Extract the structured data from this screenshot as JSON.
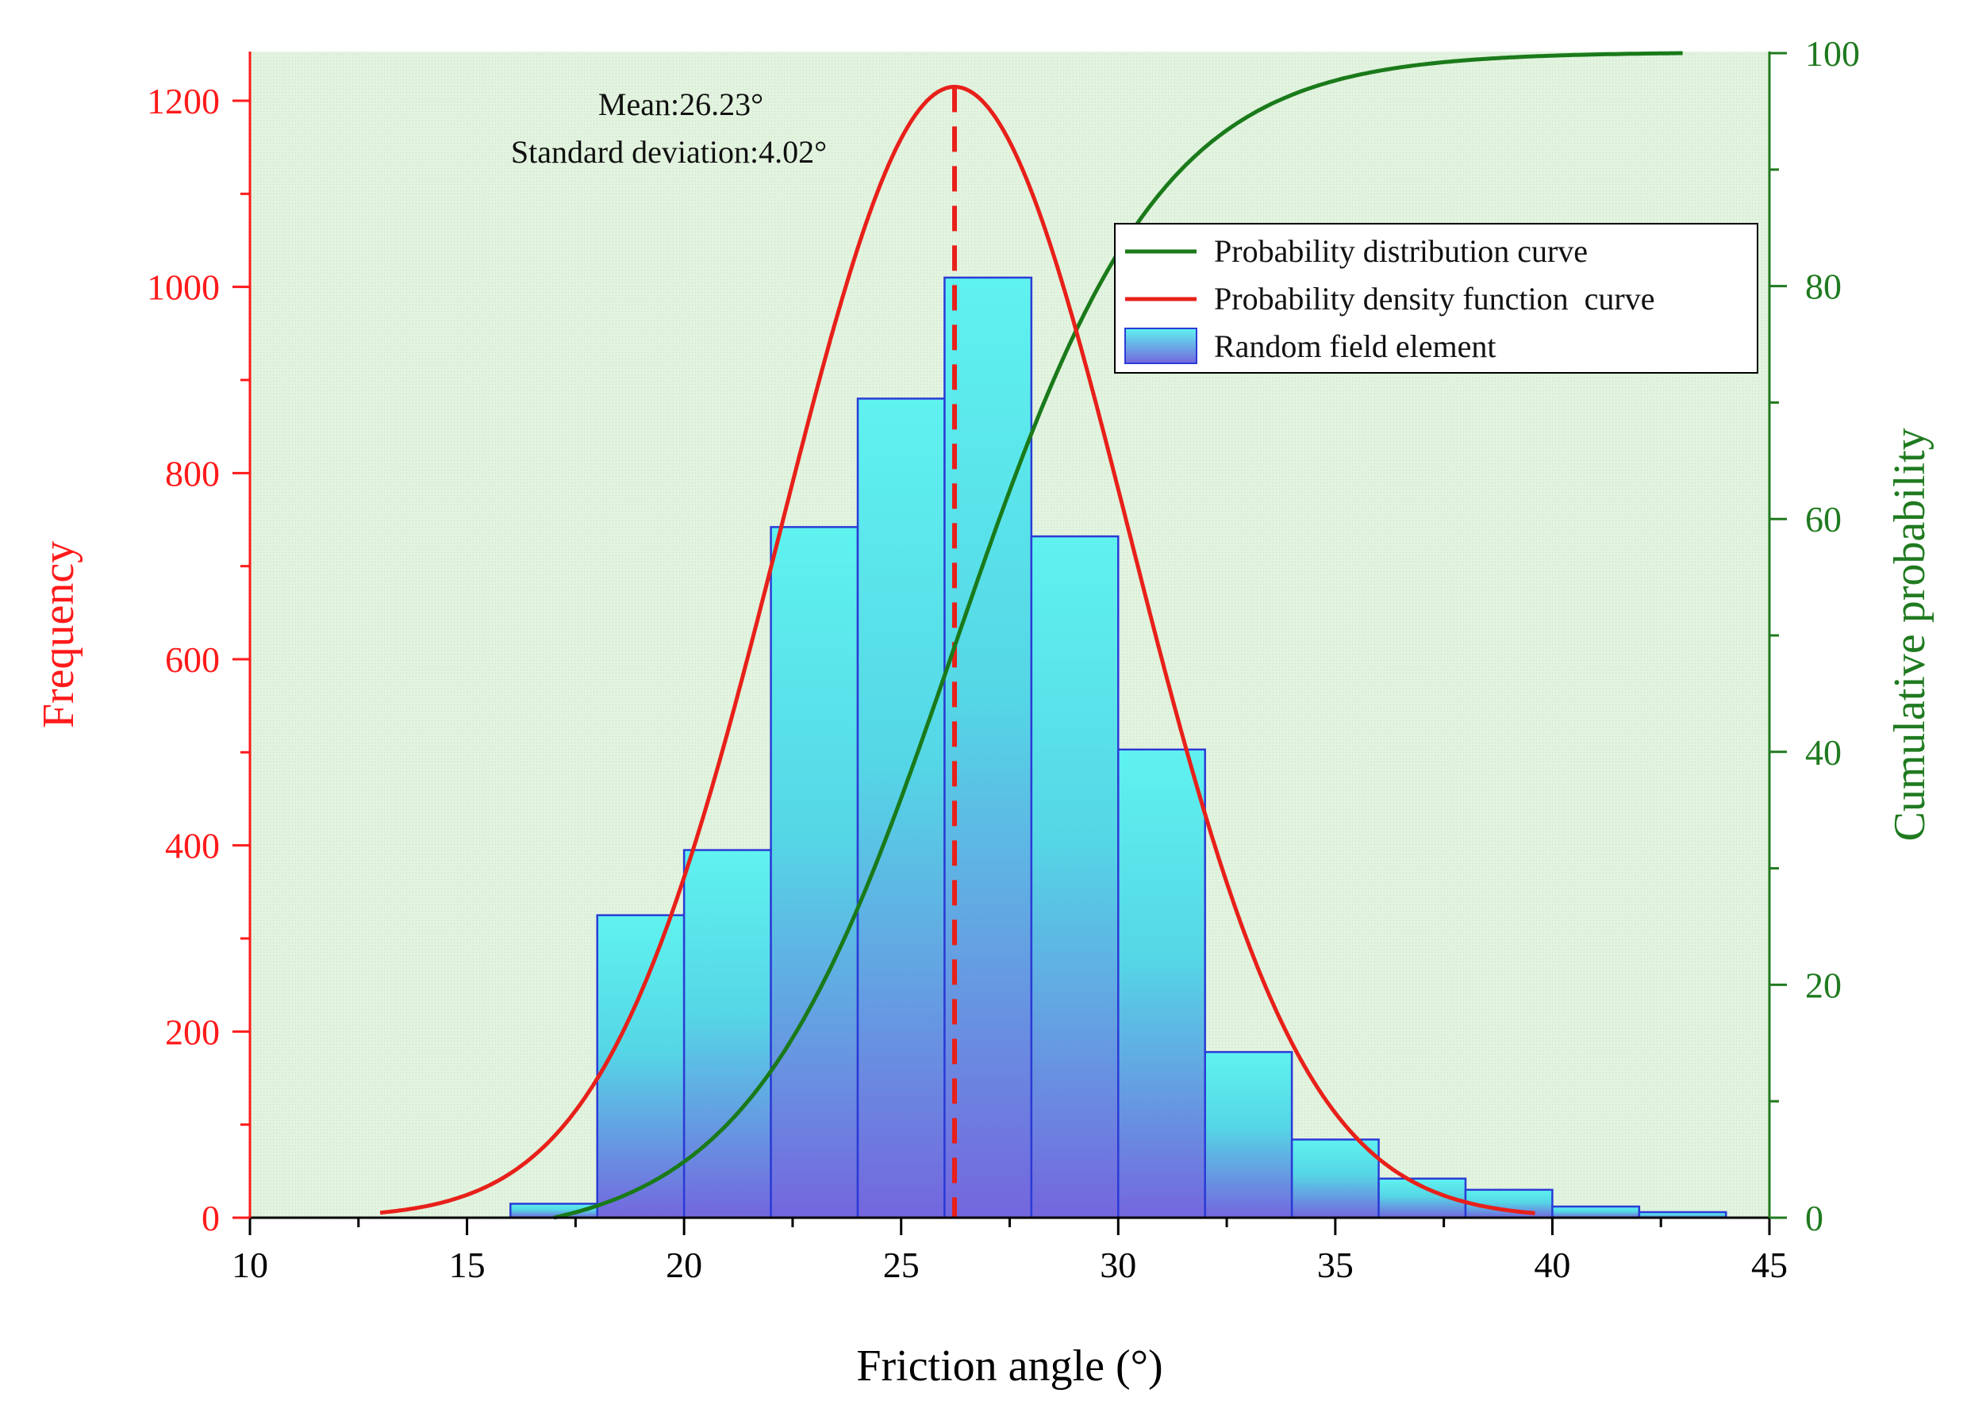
{
  "chart_data": {
    "type": "bar",
    "title": "",
    "annotations": {
      "mean_label": "Mean:26.23°",
      "sd_label": "Standard deviation:4.02°"
    },
    "xlabel": "Friction angle (°)",
    "ylabel_left": "Frequency",
    "ylabel_right": "Cumulative probability",
    "xlim": [
      10,
      45
    ],
    "ylim_left": [
      0,
      1250
    ],
    "ylim_right": [
      0,
      100
    ],
    "x_ticks": [
      "10",
      "15",
      "20",
      "25",
      "30",
      "35",
      "40",
      "45"
    ],
    "y_left_ticks": [
      "0",
      "200",
      "400",
      "600",
      "800",
      "1000",
      "1200"
    ],
    "y_right_ticks": [
      "0",
      "20",
      "40",
      "60",
      "80",
      "100"
    ],
    "histogram": {
      "name": "Random field element",
      "bins": [
        {
          "from": 16,
          "to": 18,
          "count": 15
        },
        {
          "from": 18,
          "to": 20,
          "count": 325
        },
        {
          "from": 20,
          "to": 22,
          "count": 395
        },
        {
          "from": 22,
          "to": 24,
          "count": 742
        },
        {
          "from": 24,
          "to": 26,
          "count": 880
        },
        {
          "from": 26,
          "to": 28,
          "count": 1010
        },
        {
          "from": 28,
          "to": 30,
          "count": 732
        },
        {
          "from": 30,
          "to": 32,
          "count": 503
        },
        {
          "from": 32,
          "to": 34,
          "count": 178
        },
        {
          "from": 34,
          "to": 36,
          "count": 84
        },
        {
          "from": 36,
          "to": 38,
          "count": 42
        },
        {
          "from": 38,
          "to": 40,
          "count": 30
        },
        {
          "from": 40,
          "to": 42,
          "count": 12
        },
        {
          "from": 42,
          "to": 44,
          "count": 6
        }
      ]
    },
    "pdf_curve": {
      "name": "Probability density function  curve",
      "mean": 26.23,
      "sd": 4.02,
      "peak": 1215,
      "x_range": [
        13,
        39.6
      ]
    },
    "cdf_curve": {
      "name": "Probability distribution curve",
      "mean": 26.23,
      "sd": 4.02,
      "x_start": 17,
      "x_end": 43
    },
    "mean_line": {
      "x": 26.23
    },
    "legend_position": "top-right",
    "colors": {
      "left_axis": "#ff1a1a",
      "right_axis": "#1f7a1f",
      "pdf": "#e8201a",
      "cdf": "#1a7a1a",
      "bar_fill_top": "#5ff0ee",
      "bar_fill_bottom": "#7a6ae0",
      "bar_edge": "#2b3bd6",
      "plot_bg": "#dff2dc",
      "mean_line": "#e8201a"
    }
  }
}
